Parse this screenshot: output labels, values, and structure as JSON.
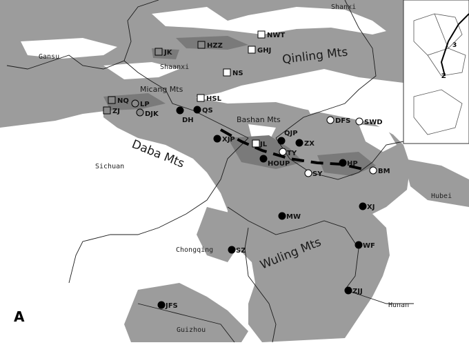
{
  "panel_letter": "A",
  "mountains": [
    {
      "key": "qinling",
      "text": "Qinling Mts"
    },
    {
      "key": "micang",
      "text": "Micang Mts"
    },
    {
      "key": "bashan",
      "text": "Bashan Mts"
    },
    {
      "key": "daba",
      "text": "Daba Mts"
    },
    {
      "key": "wuling",
      "text": "Wuling Mts"
    }
  ],
  "provinces": [
    {
      "key": "shanxi",
      "text": "Shanxi"
    },
    {
      "key": "gansu",
      "text": "Gansu"
    },
    {
      "key": "shaanxi",
      "text": "Shaanxi"
    },
    {
      "key": "sichuan",
      "text": "Sichuan"
    },
    {
      "key": "hubei",
      "text": "Hubei"
    },
    {
      "key": "chongqing",
      "text": "Chongqing"
    },
    {
      "key": "hunan",
      "text": "Hunan"
    },
    {
      "key": "guizhou",
      "text": "Guizhou"
    }
  ],
  "legend_symbol_types": {
    "open_square": "white square",
    "grey_square": "grey square",
    "open_circle": "white circle",
    "grey_circle": "grey circle",
    "black_circle": "black circle"
  },
  "sites": [
    {
      "code": "NWT",
      "symbol": "open_square"
    },
    {
      "code": "HZZ",
      "symbol": "grey_square"
    },
    {
      "code": "GHJ",
      "symbol": "open_square"
    },
    {
      "code": "JK",
      "symbol": "grey_square"
    },
    {
      "code": "NS",
      "symbol": "open_square"
    },
    {
      "code": "NQ",
      "symbol": "grey_square"
    },
    {
      "code": "LP",
      "symbol": "grey_circle"
    },
    {
      "code": "ZJ",
      "symbol": "grey_square"
    },
    {
      "code": "DJK",
      "symbol": "grey_circle"
    },
    {
      "code": "HSL",
      "symbol": "open_square"
    },
    {
      "code": "QS",
      "symbol": "black_circle"
    },
    {
      "code": "DH",
      "symbol": "black_circle"
    },
    {
      "code": "DFS",
      "symbol": "open_circle"
    },
    {
      "code": "SWD",
      "symbol": "open_circle"
    },
    {
      "code": "XJP",
      "symbol": "black_circle"
    },
    {
      "code": "QJP",
      "symbol": "black_circle"
    },
    {
      "code": "JL",
      "symbol": "open_square"
    },
    {
      "code": "ZX",
      "symbol": "black_circle"
    },
    {
      "code": "TY",
      "symbol": "open_circle"
    },
    {
      "code": "HOUP",
      "symbol": "black_circle"
    },
    {
      "code": "HP",
      "symbol": "black_circle"
    },
    {
      "code": "BM",
      "symbol": "open_circle"
    },
    {
      "code": "SY",
      "symbol": "open_circle"
    },
    {
      "code": "XJ",
      "symbol": "black_circle"
    },
    {
      "code": "MW",
      "symbol": "black_circle"
    },
    {
      "code": "WF",
      "symbol": "black_circle"
    },
    {
      "code": "SZ",
      "symbol": "black_circle"
    },
    {
      "code": "ZJJ",
      "symbol": "black_circle"
    },
    {
      "code": "JFS",
      "symbol": "black_circle"
    }
  ],
  "inset": {
    "node_label": "3",
    "node_label_2": "Z"
  },
  "colors": {
    "lowland": "#ffffff",
    "highland": "#9c9c9c",
    "peak": "#7a7a7a",
    "border": "#1a1a1a"
  }
}
